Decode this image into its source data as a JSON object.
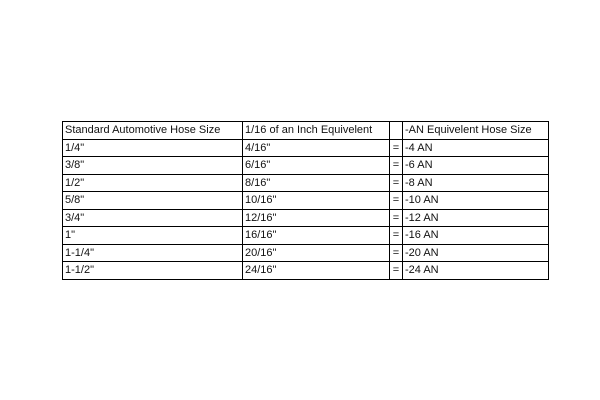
{
  "table": {
    "header": [
      "Standard Automotive Hose Size",
      "1/16 of an Inch Equivelent",
      "-AN Equivelent Hose Size"
    ],
    "rows": [
      [
        "1/4\"",
        "4/16\"",
        "=",
        "-4 AN"
      ],
      [
        "3/8\"",
        "6/16\"",
        "=",
        "-6 AN"
      ],
      [
        "1/2\"",
        "8/16\"",
        "=",
        "-8 AN"
      ],
      [
        "5/8\"",
        "10/16\"",
        "=",
        "-10 AN"
      ],
      [
        "3/4\"",
        "12/16\"",
        "=",
        "-12 AN"
      ],
      [
        "1\"",
        "16/16\"",
        "=",
        "-16 AN"
      ],
      [
        "1-1/4\"",
        "20/16\"",
        "=",
        "-20 AN"
      ],
      [
        "1-1/2\"",
        "24/16\"",
        "=",
        "-24 AN"
      ]
    ]
  }
}
